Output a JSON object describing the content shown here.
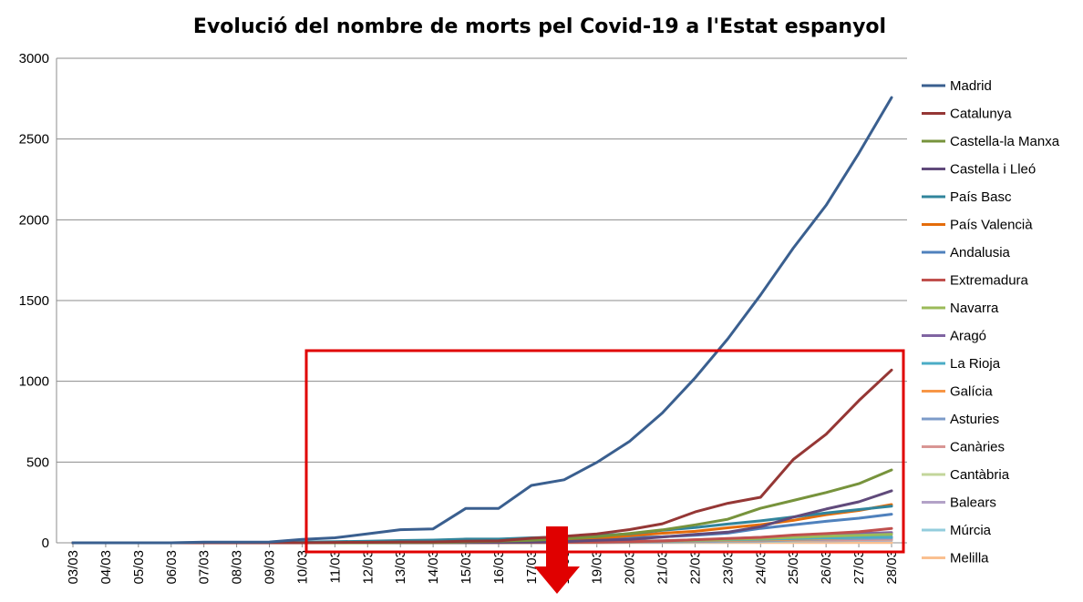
{
  "chart_data": {
    "type": "line",
    "title": "Evolució del nombre de morts pel Covid-19 a l'Estat espanyol",
    "xlabel": "",
    "ylabel": "",
    "ylim": [
      0,
      3000
    ],
    "yticks": [
      "0",
      "500",
      "1000",
      "1500",
      "2000",
      "2500",
      "3000"
    ],
    "grid": "horizontal",
    "legend": "right",
    "categories": [
      "03/03",
      "04/03",
      "05/03",
      "06/03",
      "07/03",
      "08/03",
      "09/03",
      "10/03",
      "11/03",
      "12/03",
      "13/03",
      "14/03",
      "15/03",
      "16/03",
      "17/03",
      "18/03",
      "19/03",
      "20/03",
      "21/03",
      "22/03",
      "23/03",
      "24/03",
      "25/03",
      "26/03",
      "27/03",
      "28/03"
    ],
    "series": [
      {
        "name": "Madrid",
        "color": "#3A5F8F",
        "values": [
          0,
          0,
          0,
          0,
          4,
          4,
          5,
          21,
          31,
          56,
          81,
          86,
          213,
          213,
          355,
          390,
          498,
          628,
          804,
          1021,
          1263,
          1535,
          1825,
          2090,
          2412,
          2757
        ]
      },
      {
        "name": "Catalunya",
        "color": "#953735",
        "values": [
          0,
          0,
          0,
          0,
          0,
          0,
          0,
          0,
          2,
          3,
          5,
          5,
          10,
          12,
          28,
          40,
          55,
          82,
          118,
          191,
          245,
          282,
          516,
          672,
          880,
          1070
        ]
      },
      {
        "name": "Castella-la Manxa",
        "color": "#77933C",
        "values": [
          0,
          0,
          0,
          0,
          0,
          0,
          0,
          0,
          0,
          0,
          1,
          2,
          6,
          10,
          16,
          25,
          38,
          58,
          80,
          111,
          146,
          214,
          262,
          311,
          366,
          451
        ]
      },
      {
        "name": "Castella i Lleó",
        "color": "#604A7B",
        "values": [
          0,
          0,
          0,
          0,
          0,
          0,
          0,
          0,
          0,
          0,
          0,
          1,
          1,
          2,
          4,
          8,
          15,
          21,
          36,
          52,
          66,
          100,
          159,
          209,
          254,
          322
        ]
      },
      {
        "name": "País Basc",
        "color": "#31859C",
        "values": [
          0,
          0,
          0,
          0,
          1,
          2,
          3,
          5,
          7,
          10,
          14,
          17,
          23,
          23,
          31,
          36,
          45,
          56,
          78,
          94,
          116,
          136,
          160,
          185,
          206,
          227
        ]
      },
      {
        "name": "País Valencià",
        "color": "#E46C0A",
        "values": [
          0,
          0,
          0,
          0,
          0,
          0,
          0,
          0,
          1,
          2,
          3,
          4,
          5,
          6,
          8,
          14,
          28,
          44,
          59,
          71,
          93,
          112,
          139,
          174,
          200,
          237
        ]
      },
      {
        "name": "Andalusia",
        "color": "#4F81BD",
        "values": [
          0,
          0,
          0,
          0,
          0,
          0,
          0,
          0,
          1,
          2,
          3,
          5,
          7,
          8,
          11,
          16,
          21,
          32,
          37,
          47,
          60,
          89,
          111,
          133,
          152,
          177
        ]
      },
      {
        "name": "Extremadura",
        "color": "#C0504D",
        "values": [
          0,
          0,
          0,
          0,
          0,
          0,
          0,
          0,
          0,
          0,
          0,
          1,
          1,
          1,
          2,
          3,
          4,
          7,
          11,
          19,
          27,
          34,
          48,
          57,
          68,
          89
        ]
      },
      {
        "name": "Navarra",
        "color": "#9BBB59",
        "values": [
          0,
          0,
          0,
          0,
          0,
          0,
          0,
          0,
          0,
          0,
          0,
          0,
          1,
          1,
          2,
          3,
          5,
          7,
          11,
          16,
          22,
          27,
          33,
          41,
          46,
          53
        ]
      },
      {
        "name": "Aragó",
        "color": "#8064A2",
        "values": [
          0,
          0,
          0,
          0,
          0,
          0,
          0,
          0,
          0,
          1,
          1,
          2,
          3,
          3,
          4,
          5,
          7,
          10,
          13,
          18,
          25,
          34,
          41,
          50,
          57,
          63
        ]
      },
      {
        "name": "La Rioja",
        "color": "#4BACC6",
        "values": [
          0,
          0,
          0,
          0,
          0,
          0,
          0,
          0,
          1,
          1,
          2,
          2,
          3,
          3,
          4,
          4,
          6,
          8,
          10,
          14,
          19,
          22,
          26,
          30,
          33,
          36
        ]
      },
      {
        "name": "Galícia",
        "color": "#F79646",
        "values": [
          0,
          0,
          0,
          0,
          0,
          0,
          0,
          0,
          0,
          0,
          0,
          0,
          1,
          1,
          2,
          3,
          4,
          6,
          9,
          12,
          15,
          17,
          22,
          26,
          32,
          37
        ]
      },
      {
        "name": "Asturies",
        "color": "#7C9BC9",
        "values": [
          0,
          0,
          0,
          0,
          0,
          0,
          0,
          0,
          0,
          0,
          0,
          0,
          0,
          1,
          1,
          2,
          3,
          4,
          6,
          8,
          11,
          13,
          18,
          23,
          27,
          30
        ]
      },
      {
        "name": "Canàries",
        "color": "#D99694",
        "values": [
          0,
          0,
          0,
          0,
          0,
          0,
          0,
          0,
          0,
          0,
          0,
          1,
          1,
          1,
          2,
          3,
          4,
          5,
          7,
          9,
          11,
          13,
          15,
          17,
          19,
          22
        ]
      },
      {
        "name": "Cantàbria",
        "color": "#C3D69B",
        "values": [
          0,
          0,
          0,
          0,
          0,
          0,
          0,
          0,
          0,
          0,
          0,
          0,
          1,
          1,
          2,
          2,
          3,
          4,
          5,
          7,
          9,
          11,
          13,
          15,
          18,
          21
        ]
      },
      {
        "name": "Balears",
        "color": "#B3A2C7",
        "values": [
          0,
          0,
          0,
          0,
          0,
          0,
          0,
          0,
          0,
          0,
          0,
          0,
          1,
          1,
          1,
          2,
          2,
          3,
          4,
          6,
          8,
          10,
          12,
          13,
          15,
          17
        ]
      },
      {
        "name": "Múrcia",
        "color": "#93CDDD",
        "values": [
          0,
          0,
          0,
          0,
          0,
          0,
          0,
          0,
          0,
          0,
          0,
          0,
          0,
          1,
          1,
          2,
          2,
          3,
          4,
          5,
          7,
          8,
          10,
          12,
          14,
          16
        ]
      },
      {
        "name": "Melilla",
        "color": "#FAC090",
        "values": [
          0,
          0,
          0,
          0,
          0,
          0,
          0,
          0,
          0,
          0,
          0,
          0,
          0,
          0,
          0,
          0,
          0,
          1,
          1,
          1,
          1,
          1,
          1,
          1,
          1,
          1
        ]
      }
    ]
  },
  "annotation": {
    "highlight_box_color": "#E00000",
    "arrow_color": "#E00000"
  }
}
